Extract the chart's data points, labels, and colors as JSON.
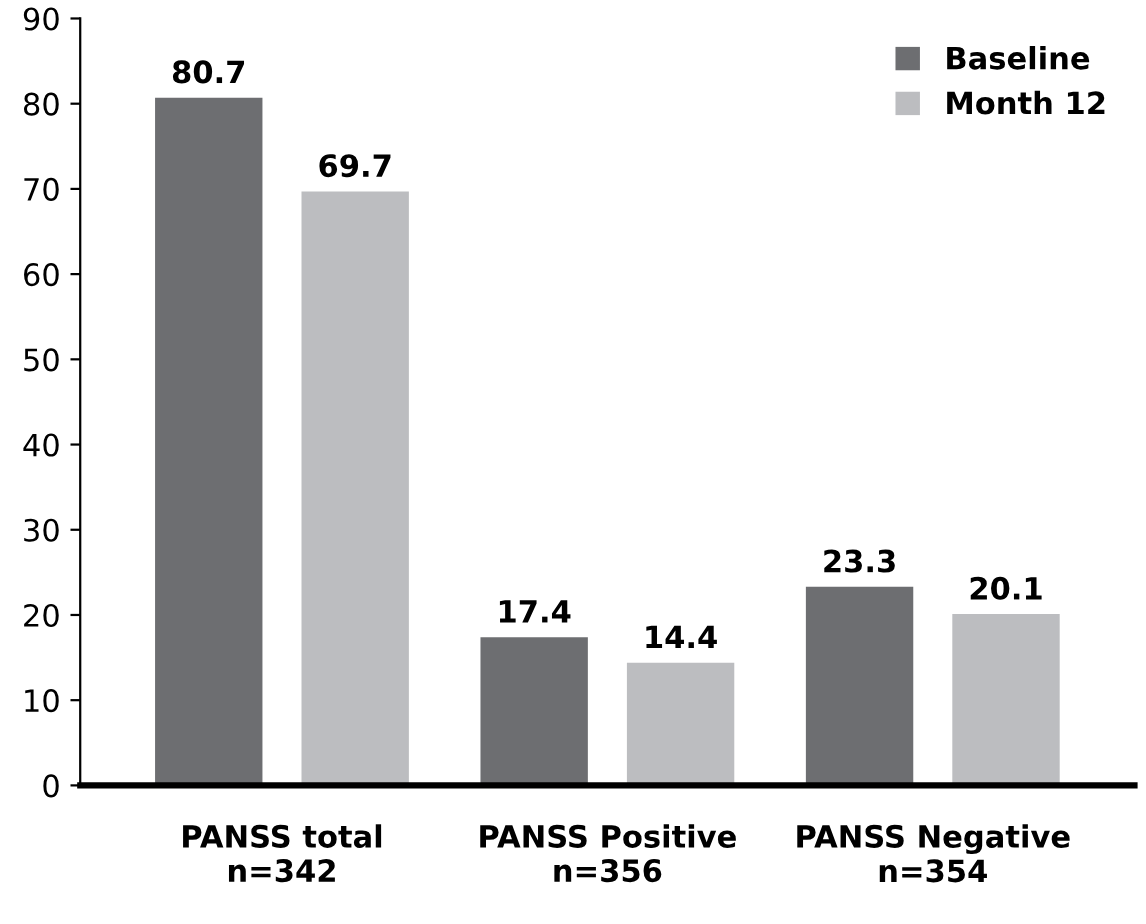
{
  "chart_data": {
    "type": "bar",
    "categories": [
      "PANSS total\nn=342",
      "PANSS Positive\nn=356",
      "PANSS Negative\nn=354"
    ],
    "series": [
      {
        "name": "Baseline",
        "color": "#6d6e71",
        "values": [
          80.7,
          17.4,
          23.3
        ]
      },
      {
        "name": "Month 12",
        "color": "#bcbdc0",
        "values": [
          69.7,
          14.4,
          20.1
        ]
      }
    ],
    "ylim": [
      0,
      90
    ],
    "yticks": [
      0,
      10,
      20,
      30,
      40,
      50,
      60,
      70,
      80,
      90
    ],
    "grid": false,
    "legend": "top right",
    "data_labels": true
  }
}
